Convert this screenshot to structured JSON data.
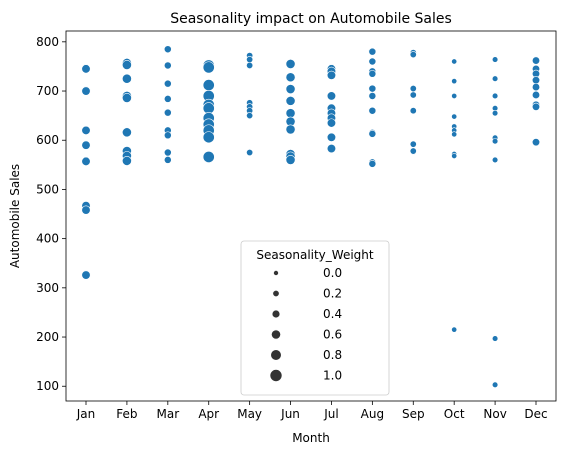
{
  "chart_data": {
    "type": "scatter",
    "title": "Seasonality impact on Automobile Sales",
    "xlabel": "Month",
    "ylabel": "Automobile Sales",
    "categories": [
      "Jan",
      "Feb",
      "Mar",
      "Apr",
      "May",
      "Jun",
      "Jul",
      "Aug",
      "Sep",
      "Oct",
      "Nov",
      "Dec"
    ],
    "yticks": [
      100,
      200,
      300,
      400,
      500,
      600,
      700,
      800
    ],
    "ylim": [
      70,
      822
    ],
    "grid": false,
    "marker_color": "#1f77b4",
    "legend": {
      "title": "Seasonality_Weight",
      "placement": "lower center",
      "entries": [
        {
          "label": "0.0",
          "weight": 0.0
        },
        {
          "label": "0.2",
          "weight": 0.2
        },
        {
          "label": "0.4",
          "weight": 0.4
        },
        {
          "label": "0.6",
          "weight": 0.6
        },
        {
          "label": "0.8",
          "weight": 0.8
        },
        {
          "label": "1.0",
          "weight": 1.0
        }
      ]
    },
    "points": [
      {
        "month": "Jan",
        "value": 745,
        "weight": 0.5
      },
      {
        "month": "Jan",
        "value": 700,
        "weight": 0.5
      },
      {
        "month": "Jan",
        "value": 620,
        "weight": 0.5
      },
      {
        "month": "Jan",
        "value": 590,
        "weight": 0.5
      },
      {
        "month": "Jan",
        "value": 557,
        "weight": 0.5
      },
      {
        "month": "Jan",
        "value": 467,
        "weight": 0.5
      },
      {
        "month": "Jan",
        "value": 458,
        "weight": 0.5
      },
      {
        "month": "Jan",
        "value": 326,
        "weight": 0.5
      },
      {
        "month": "Feb",
        "value": 757,
        "weight": 0.6
      },
      {
        "month": "Feb",
        "value": 753,
        "weight": 0.6
      },
      {
        "month": "Feb",
        "value": 725,
        "weight": 0.6
      },
      {
        "month": "Feb",
        "value": 690,
        "weight": 0.6
      },
      {
        "month": "Feb",
        "value": 686,
        "weight": 0.6
      },
      {
        "month": "Feb",
        "value": 616,
        "weight": 0.6
      },
      {
        "month": "Feb",
        "value": 578,
        "weight": 0.6
      },
      {
        "month": "Feb",
        "value": 568,
        "weight": 0.6
      },
      {
        "month": "Feb",
        "value": 558,
        "weight": 0.6
      },
      {
        "month": "Mar",
        "value": 785,
        "weight": 0.3
      },
      {
        "month": "Mar",
        "value": 752,
        "weight": 0.3
      },
      {
        "month": "Mar",
        "value": 715,
        "weight": 0.3
      },
      {
        "month": "Mar",
        "value": 684,
        "weight": 0.3
      },
      {
        "month": "Mar",
        "value": 656,
        "weight": 0.3
      },
      {
        "month": "Mar",
        "value": 620,
        "weight": 0.3
      },
      {
        "month": "Mar",
        "value": 610,
        "weight": 0.3
      },
      {
        "month": "Mar",
        "value": 575,
        "weight": 0.3
      },
      {
        "month": "Mar",
        "value": 560,
        "weight": 0.3
      },
      {
        "month": "Apr",
        "value": 752,
        "weight": 0.9
      },
      {
        "month": "Apr",
        "value": 748,
        "weight": 0.9
      },
      {
        "month": "Apr",
        "value": 712,
        "weight": 0.9
      },
      {
        "month": "Apr",
        "value": 690,
        "weight": 0.9
      },
      {
        "month": "Apr",
        "value": 672,
        "weight": 0.9
      },
      {
        "month": "Apr",
        "value": 665,
        "weight": 0.9
      },
      {
        "month": "Apr",
        "value": 645,
        "weight": 0.9
      },
      {
        "month": "Apr",
        "value": 632,
        "weight": 0.9
      },
      {
        "month": "Apr",
        "value": 620,
        "weight": 0.9
      },
      {
        "month": "Apr",
        "value": 606,
        "weight": 0.9
      },
      {
        "month": "Apr",
        "value": 566,
        "weight": 0.9
      },
      {
        "month": "May",
        "value": 772,
        "weight": 0.2
      },
      {
        "month": "May",
        "value": 764,
        "weight": 0.2
      },
      {
        "month": "May",
        "value": 752,
        "weight": 0.2
      },
      {
        "month": "May",
        "value": 676,
        "weight": 0.2
      },
      {
        "month": "May",
        "value": 668,
        "weight": 0.2
      },
      {
        "month": "May",
        "value": 660,
        "weight": 0.2
      },
      {
        "month": "May",
        "value": 650,
        "weight": 0.2
      },
      {
        "month": "May",
        "value": 575,
        "weight": 0.2
      },
      {
        "month": "Jun",
        "value": 755,
        "weight": 0.6
      },
      {
        "month": "Jun",
        "value": 728,
        "weight": 0.6
      },
      {
        "month": "Jun",
        "value": 704,
        "weight": 0.6
      },
      {
        "month": "Jun",
        "value": 680,
        "weight": 0.6
      },
      {
        "month": "Jun",
        "value": 655,
        "weight": 0.6
      },
      {
        "month": "Jun",
        "value": 638,
        "weight": 0.6
      },
      {
        "month": "Jun",
        "value": 622,
        "weight": 0.6
      },
      {
        "month": "Jun",
        "value": 572,
        "weight": 0.6
      },
      {
        "month": "Jun",
        "value": 567,
        "weight": 0.6
      },
      {
        "month": "Jun",
        "value": 560,
        "weight": 0.6
      },
      {
        "month": "Jul",
        "value": 745,
        "weight": 0.5
      },
      {
        "month": "Jul",
        "value": 740,
        "weight": 0.5
      },
      {
        "month": "Jul",
        "value": 732,
        "weight": 0.5
      },
      {
        "month": "Jul",
        "value": 690,
        "weight": 0.5
      },
      {
        "month": "Jul",
        "value": 665,
        "weight": 0.5
      },
      {
        "month": "Jul",
        "value": 655,
        "weight": 0.5
      },
      {
        "month": "Jul",
        "value": 645,
        "weight": 0.5
      },
      {
        "month": "Jul",
        "value": 635,
        "weight": 0.5
      },
      {
        "month": "Jul",
        "value": 606,
        "weight": 0.5
      },
      {
        "month": "Jul",
        "value": 583,
        "weight": 0.5
      },
      {
        "month": "Aug",
        "value": 780,
        "weight": 0.3
      },
      {
        "month": "Aug",
        "value": 760,
        "weight": 0.3
      },
      {
        "month": "Aug",
        "value": 740,
        "weight": 0.3
      },
      {
        "month": "Aug",
        "value": 735,
        "weight": 0.3
      },
      {
        "month": "Aug",
        "value": 705,
        "weight": 0.3
      },
      {
        "month": "Aug",
        "value": 690,
        "weight": 0.3
      },
      {
        "month": "Aug",
        "value": 660,
        "weight": 0.3
      },
      {
        "month": "Aug",
        "value": 615,
        "weight": 0.3
      },
      {
        "month": "Aug",
        "value": 613,
        "weight": 0.3
      },
      {
        "month": "Aug",
        "value": 555,
        "weight": 0.3
      },
      {
        "month": "Aug",
        "value": 552,
        "weight": 0.3
      },
      {
        "month": "Sep",
        "value": 778,
        "weight": 0.2
      },
      {
        "month": "Sep",
        "value": 774,
        "weight": 0.2
      },
      {
        "month": "Sep",
        "value": 705,
        "weight": 0.2
      },
      {
        "month": "Sep",
        "value": 692,
        "weight": 0.2
      },
      {
        "month": "Sep",
        "value": 660,
        "weight": 0.2
      },
      {
        "month": "Sep",
        "value": 592,
        "weight": 0.2
      },
      {
        "month": "Sep",
        "value": 578,
        "weight": 0.2
      },
      {
        "month": "Oct",
        "value": 760,
        "weight": 0.05
      },
      {
        "month": "Oct",
        "value": 720,
        "weight": 0.05
      },
      {
        "month": "Oct",
        "value": 690,
        "weight": 0.05
      },
      {
        "month": "Oct",
        "value": 648,
        "weight": 0.05
      },
      {
        "month": "Oct",
        "value": 628,
        "weight": 0.05
      },
      {
        "month": "Oct",
        "value": 620,
        "weight": 0.05
      },
      {
        "month": "Oct",
        "value": 612,
        "weight": 0.05
      },
      {
        "month": "Oct",
        "value": 572,
        "weight": 0.05
      },
      {
        "month": "Oct",
        "value": 568,
        "weight": 0.05
      },
      {
        "month": "Oct",
        "value": 215,
        "weight": 0.05
      },
      {
        "month": "Nov",
        "value": 764,
        "weight": 0.1
      },
      {
        "month": "Nov",
        "value": 725,
        "weight": 0.1
      },
      {
        "month": "Nov",
        "value": 690,
        "weight": 0.1
      },
      {
        "month": "Nov",
        "value": 665,
        "weight": 0.1
      },
      {
        "month": "Nov",
        "value": 655,
        "weight": 0.1
      },
      {
        "month": "Nov",
        "value": 605,
        "weight": 0.1
      },
      {
        "month": "Nov",
        "value": 598,
        "weight": 0.1
      },
      {
        "month": "Nov",
        "value": 560,
        "weight": 0.1
      },
      {
        "month": "Nov",
        "value": 197,
        "weight": 0.1
      },
      {
        "month": "Nov",
        "value": 103,
        "weight": 0.1
      },
      {
        "month": "Dec",
        "value": 762,
        "weight": 0.35
      },
      {
        "month": "Dec",
        "value": 745,
        "weight": 0.35
      },
      {
        "month": "Dec",
        "value": 735,
        "weight": 0.35
      },
      {
        "month": "Dec",
        "value": 722,
        "weight": 0.35
      },
      {
        "month": "Dec",
        "value": 708,
        "weight": 0.35
      },
      {
        "month": "Dec",
        "value": 692,
        "weight": 0.35
      },
      {
        "month": "Dec",
        "value": 672,
        "weight": 0.35
      },
      {
        "month": "Dec",
        "value": 668,
        "weight": 0.35
      },
      {
        "month": "Dec",
        "value": 596,
        "weight": 0.35
      }
    ]
  }
}
